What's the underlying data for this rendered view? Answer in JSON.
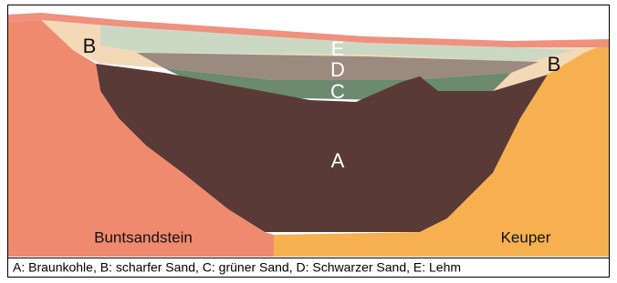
{
  "labels": {
    "a": "A",
    "b_left": "B",
    "b_right": "B",
    "c": "C",
    "d": "D",
    "e": "E",
    "buntsandstein": "Buntsandstein",
    "keuper": "Keuper"
  },
  "legend": "A: Braunkohle, B: scharfer Sand, C: grüner Sand, D: Schwarzer Sand, E: Lehm"
}
